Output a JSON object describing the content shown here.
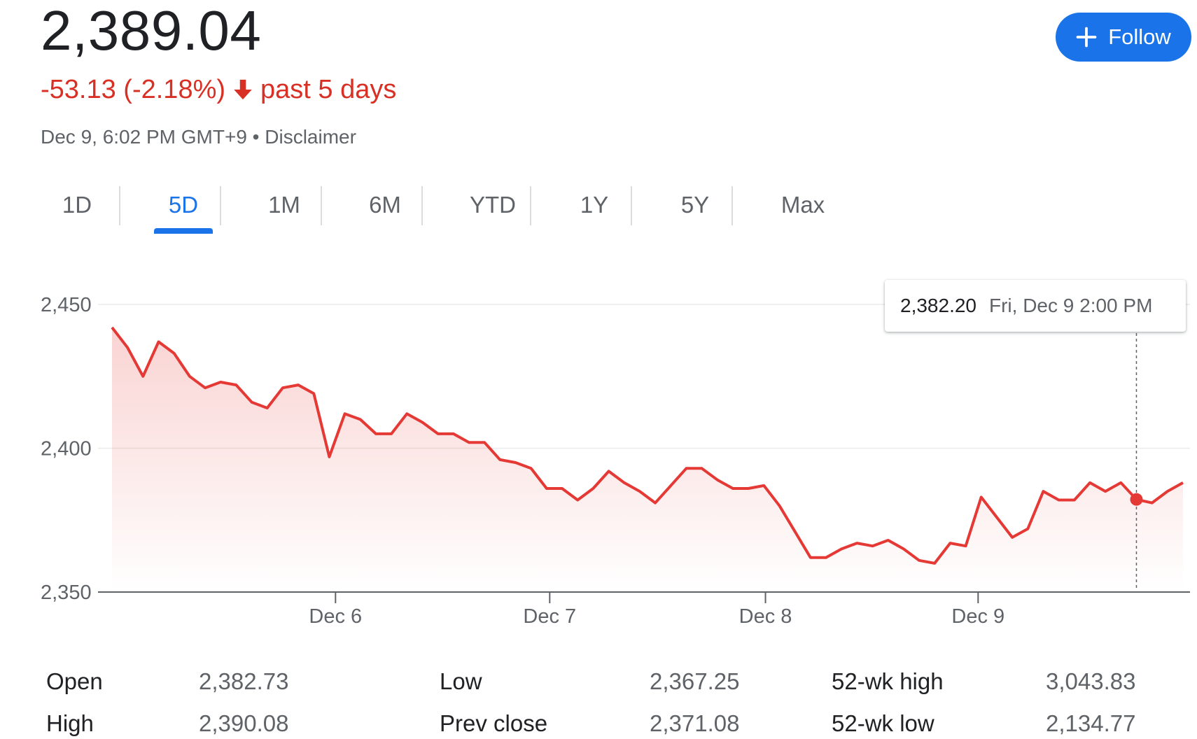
{
  "quote": {
    "price": "2,389.04",
    "change": "-53.13 (-2.18%)",
    "period": "past 5 days",
    "timestamp": "Dec 9, 6:02 PM GMT+9 • Disclaimer"
  },
  "follow_button": {
    "label": "Follow"
  },
  "tabs": [
    {
      "label": "1D",
      "active": false
    },
    {
      "label": "5D",
      "active": true
    },
    {
      "label": "1M",
      "active": false
    },
    {
      "label": "6M",
      "active": false
    },
    {
      "label": "YTD",
      "active": false
    },
    {
      "label": "1Y",
      "active": false
    },
    {
      "label": "5Y",
      "active": false
    },
    {
      "label": "Max",
      "active": false
    }
  ],
  "tooltip": {
    "value": "2,382.20",
    "date": "Fri, Dec 9 2:00 PM"
  },
  "colors": {
    "line": "#e53935",
    "negative": "#d93025",
    "accent": "#1a73e8"
  },
  "chart_data": {
    "type": "area",
    "y_ticks": [
      "2,450",
      "2,400",
      "2,350"
    ],
    "ylim": [
      2350,
      2450
    ],
    "x_ticks": [
      "Dec 6",
      "Dec 7",
      "Dec 8",
      "Dec 9"
    ],
    "highlight_index": 66,
    "series": [
      {
        "values": [
          2442,
          2435,
          2425,
          2437,
          2433,
          2425,
          2421,
          2423,
          2422,
          2416,
          2414,
          2421,
          2422,
          2419,
          2397,
          2412,
          2410,
          2405,
          2405,
          2412,
          2409,
          2405,
          2405,
          2402,
          2402,
          2396,
          2395,
          2393,
          2386,
          2386,
          2382,
          2386,
          2392,
          2388,
          2385,
          2381,
          2387,
          2393,
          2393,
          2389,
          2386,
          2386,
          2387,
          2380,
          2371,
          2362,
          2362,
          2365,
          2367,
          2366,
          2368,
          2365,
          2361,
          2360,
          2367,
          2366,
          2383,
          2376,
          2369,
          2372,
          2385,
          2382,
          2382,
          2388,
          2385,
          2388,
          2382.2,
          2381,
          2385,
          2388
        ]
      }
    ]
  },
  "stats": {
    "open_label": "Open",
    "open_value": "2,382.73",
    "high_label": "High",
    "high_value": "2,390.08",
    "low_label": "Low",
    "low_value": "2,367.25",
    "prev_close_label": "Prev close",
    "prev_close_value": "2,371.08",
    "wk52_high_label": "52-wk high",
    "wk52_high_value": "3,043.83",
    "wk52_low_label": "52-wk low",
    "wk52_low_value": "2,134.77"
  }
}
